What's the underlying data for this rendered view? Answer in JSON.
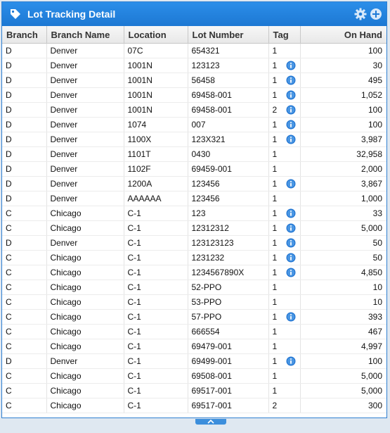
{
  "header": {
    "title": "Lot Tracking Detail"
  },
  "columns": [
    "Branch",
    "Branch Name",
    "Location",
    "Lot Number",
    "Tag",
    "On Hand"
  ],
  "rows": [
    {
      "branch": "D",
      "name": "Denver",
      "location": "07C",
      "lot": "654321",
      "tag": "1",
      "info": false,
      "onhand": "100"
    },
    {
      "branch": "D",
      "name": "Denver",
      "location": "1001N",
      "lot": "123123",
      "tag": "1",
      "info": true,
      "onhand": "30"
    },
    {
      "branch": "D",
      "name": "Denver",
      "location": "1001N",
      "lot": "56458",
      "tag": "1",
      "info": true,
      "onhand": "495"
    },
    {
      "branch": "D",
      "name": "Denver",
      "location": "1001N",
      "lot": "69458-001",
      "tag": "1",
      "info": true,
      "onhand": "1,052"
    },
    {
      "branch": "D",
      "name": "Denver",
      "location": "1001N",
      "lot": "69458-001",
      "tag": "2",
      "info": true,
      "onhand": "100"
    },
    {
      "branch": "D",
      "name": "Denver",
      "location": "1074",
      "lot": "007",
      "tag": "1",
      "info": true,
      "onhand": "100"
    },
    {
      "branch": "D",
      "name": "Denver",
      "location": "1100X",
      "lot": "123X321",
      "tag": "1",
      "info": true,
      "onhand": "3,987"
    },
    {
      "branch": "D",
      "name": "Denver",
      "location": "1101T",
      "lot": "0430",
      "tag": "1",
      "info": false,
      "onhand": "32,958"
    },
    {
      "branch": "D",
      "name": "Denver",
      "location": "1102F",
      "lot": "69459-001",
      "tag": "1",
      "info": false,
      "onhand": "2,000"
    },
    {
      "branch": "D",
      "name": "Denver",
      "location": "1200A",
      "lot": "123456",
      "tag": "1",
      "info": true,
      "onhand": "3,867"
    },
    {
      "branch": "D",
      "name": "Denver",
      "location": "AAAAAA",
      "lot": "123456",
      "tag": "1",
      "info": false,
      "onhand": "1,000"
    },
    {
      "branch": "C",
      "name": "Chicago",
      "location": "C-1",
      "lot": "123",
      "tag": "1",
      "info": true,
      "onhand": "33"
    },
    {
      "branch": "C",
      "name": "Chicago",
      "location": "C-1",
      "lot": "12312312",
      "tag": "1",
      "info": true,
      "onhand": "5,000"
    },
    {
      "branch": "D",
      "name": "Denver",
      "location": "C-1",
      "lot": "123123123",
      "tag": "1",
      "info": true,
      "onhand": "50"
    },
    {
      "branch": "C",
      "name": "Chicago",
      "location": "C-1",
      "lot": "1231232",
      "tag": "1",
      "info": true,
      "onhand": "50"
    },
    {
      "branch": "C",
      "name": "Chicago",
      "location": "C-1",
      "lot": "1234567890X",
      "tag": "1",
      "info": true,
      "onhand": "4,850"
    },
    {
      "branch": "C",
      "name": "Chicago",
      "location": "C-1",
      "lot": "52-PPO",
      "tag": "1",
      "info": false,
      "onhand": "10"
    },
    {
      "branch": "C",
      "name": "Chicago",
      "location": "C-1",
      "lot": "53-PPO",
      "tag": "1",
      "info": false,
      "onhand": "10"
    },
    {
      "branch": "C",
      "name": "Chicago",
      "location": "C-1",
      "lot": "57-PPO",
      "tag": "1",
      "info": true,
      "onhand": "393"
    },
    {
      "branch": "C",
      "name": "Chicago",
      "location": "C-1",
      "lot": "666554",
      "tag": "1",
      "info": false,
      "onhand": "467"
    },
    {
      "branch": "C",
      "name": "Chicago",
      "location": "C-1",
      "lot": "69479-001",
      "tag": "1",
      "info": false,
      "onhand": "4,997"
    },
    {
      "branch": "D",
      "name": "Denver",
      "location": "C-1",
      "lot": "69499-001",
      "tag": "1",
      "info": true,
      "onhand": "100"
    },
    {
      "branch": "C",
      "name": "Chicago",
      "location": "C-1",
      "lot": "69508-001",
      "tag": "1",
      "info": false,
      "onhand": "5,000"
    },
    {
      "branch": "C",
      "name": "Chicago",
      "location": "C-1",
      "lot": "69517-001",
      "tag": "1",
      "info": false,
      "onhand": "5,000"
    },
    {
      "branch": "C",
      "name": "Chicago",
      "location": "C-1",
      "lot": "69517-001",
      "tag": "2",
      "info": false,
      "onhand": "300"
    }
  ],
  "icons": {
    "header": "tag-icon",
    "settings": "gear-icon",
    "add": "plus-circle-icon",
    "row_info": "info-icon"
  },
  "colors": {
    "header_bg": "#1d78d3",
    "info_icon": "#1f73d1"
  }
}
